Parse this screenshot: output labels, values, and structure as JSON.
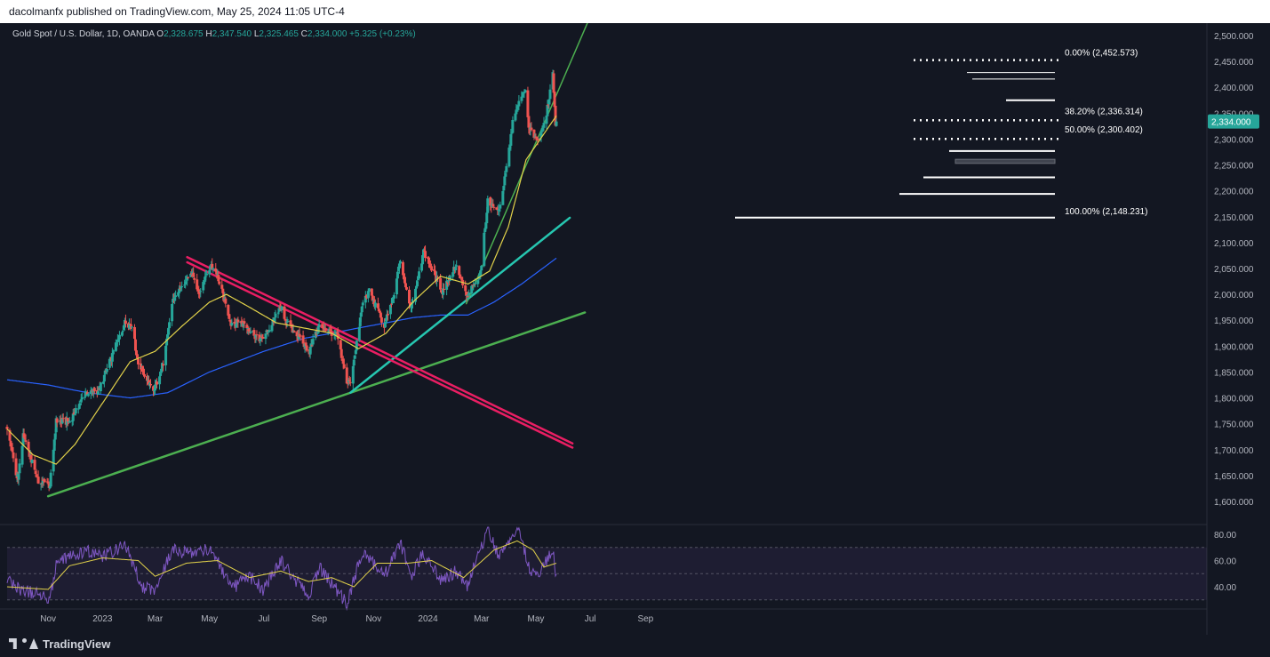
{
  "publisher": "dacolmanfx published on TradingView.com, May 25, 2024 11:05 UTC-4",
  "header": {
    "symbol": "Gold Spot / U.S. Dollar, 1D, OANDA",
    "o_label": "O",
    "o": "2,328.675",
    "h_label": "H",
    "h": "2,347.540",
    "l_label": "L",
    "l": "2,325.465",
    "c_label": "C",
    "c": "2,334.000",
    "change": "+5.325 (+0.23%)"
  },
  "brand": "TradingView",
  "colors": {
    "background": "#131722",
    "up": "#26a69a",
    "down": "#ef5350",
    "ma_fast": "#e2d24a",
    "ma_slow": "#2962ff",
    "trend_green": "#4caf50",
    "trend_teal": "#26c6b0",
    "channel_pink": "#e91e63",
    "rsi": "#7e57c2",
    "price_tag": "#26a69a"
  },
  "chart_data": {
    "type": "candlestick",
    "y_axis_ticks": [
      "2,500.000",
      "2,450.000",
      "2,400.000",
      "2,350.000",
      "2,300.000",
      "2,250.000",
      "2,200.000",
      "2,150.000",
      "2,100.000",
      "2,050.000",
      "2,000.000",
      "1,950.000",
      "1,900.000",
      "1,850.000",
      "1,800.000",
      "1,750.000",
      "1,700.000",
      "1,650.000",
      "1,600.000"
    ],
    "y_tick_values": [
      2500,
      2450,
      2400,
      2350,
      2300,
      2250,
      2200,
      2150,
      2100,
      2050,
      2000,
      1950,
      1900,
      1850,
      1800,
      1750,
      1700,
      1650,
      1600
    ],
    "ylim": [
      1570,
      2530
    ],
    "x_axis_ticks": [
      "Nov",
      "2023",
      "Mar",
      "May",
      "Jul",
      "Sep",
      "Nov",
      "2024",
      "Mar",
      "May",
      "Jul",
      "Sep"
    ],
    "x_tick_dates": [
      "2022-11-01",
      "2023-01-01",
      "2023-03-01",
      "2023-05-01",
      "2023-07-01",
      "2023-09-01",
      "2023-11-01",
      "2024-01-01",
      "2024-03-01",
      "2024-05-01",
      "2024-07-01",
      "2024-09-01"
    ],
    "current_price": 2334.0,
    "current_price_label": "2,334.000",
    "price_anchors": [
      [
        "2022-09-16",
        1744
      ],
      [
        "2022-09-28",
        1640
      ],
      [
        "2022-10-04",
        1725
      ],
      [
        "2022-10-21",
        1640
      ],
      [
        "2022-11-03",
        1631
      ],
      [
        "2022-11-10",
        1755
      ],
      [
        "2022-11-25",
        1754
      ],
      [
        "2022-12-13",
        1810
      ],
      [
        "2022-12-28",
        1815
      ],
      [
        "2023-01-26",
        1945
      ],
      [
        "2023-02-03",
        1940
      ],
      [
        "2023-02-10",
        1865
      ],
      [
        "2023-02-28",
        1815
      ],
      [
        "2023-03-10",
        1868
      ],
      [
        "2023-03-20",
        1985
      ],
      [
        "2023-04-05",
        2025
      ],
      [
        "2023-04-13",
        2040
      ],
      [
        "2023-04-19",
        2000
      ],
      [
        "2023-05-03",
        2055
      ],
      [
        "2023-05-10",
        2035
      ],
      [
        "2023-05-25",
        1945
      ],
      [
        "2023-06-07",
        1945
      ],
      [
        "2023-06-23",
        1920
      ],
      [
        "2023-06-29",
        1910
      ],
      [
        "2023-07-20",
        1975
      ],
      [
        "2023-07-27",
        1945
      ],
      [
        "2023-08-21",
        1890
      ],
      [
        "2023-09-01",
        1940
      ],
      [
        "2023-09-21",
        1920
      ],
      [
        "2023-10-02",
        1830
      ],
      [
        "2023-10-06",
        1831
      ],
      [
        "2023-10-20",
        1985
      ],
      [
        "2023-10-27",
        2005
      ],
      [
        "2023-11-13",
        1940
      ],
      [
        "2023-11-24",
        2000
      ],
      [
        "2023-12-01",
        2070
      ],
      [
        "2023-12-08",
        2004
      ],
      [
        "2023-12-13",
        1975
      ],
      [
        "2023-12-27",
        2080
      ],
      [
        "2024-01-05",
        2050
      ],
      [
        "2024-01-17",
        2006
      ],
      [
        "2024-02-01",
        2055
      ],
      [
        "2024-02-14",
        1993
      ],
      [
        "2024-02-29",
        2044
      ],
      [
        "2024-03-08",
        2180
      ],
      [
        "2024-03-20",
        2160
      ],
      [
        "2024-03-28",
        2230
      ],
      [
        "2024-04-05",
        2330
      ],
      [
        "2024-04-12",
        2370
      ],
      [
        "2024-04-19",
        2395
      ],
      [
        "2024-04-23",
        2320
      ],
      [
        "2024-05-02",
        2300
      ],
      [
        "2024-05-08",
        2310
      ],
      [
        "2024-05-14",
        2360
      ],
      [
        "2024-05-20",
        2425
      ],
      [
        "2024-05-23",
        2330
      ],
      [
        "2024-05-24",
        2334
      ]
    ],
    "horizontal_levels": [
      2428.5,
      2416,
      2375,
      2277,
      2226,
      2194
    ],
    "zone": [
      2253,
      2261
    ],
    "fibonacci": [
      {
        "label": "0.00% (2,452.573)",
        "value": 2452.573
      },
      {
        "label": "38.20% (2,336.314)",
        "value": 2336.314
      },
      {
        "label": "50.00% (2,300.402)",
        "value": 2300.402
      },
      {
        "label": "100.00% (2,148.231)",
        "value": 2148.231
      }
    ],
    "trendlines": [
      {
        "name": "long-green",
        "p1": [
          "2022-11-01",
          1610
        ],
        "p2": [
          "2024-06-25",
          1965
        ]
      },
      {
        "name": "teal",
        "p1": [
          "2023-10-06",
          1810
        ],
        "p2": [
          "2024-06-08",
          2148
        ]
      },
      {
        "name": "steep-green",
        "p1": [
          "2024-02-13",
          1982
        ],
        "p2": [
          "2024-06-28",
          2525
        ]
      },
      {
        "name": "pink-upper",
        "p1": [
          "2023-04-06",
          2072
        ],
        "p2": [
          "2024-06-11",
          1712
        ]
      },
      {
        "name": "pink-lower",
        "p1": [
          "2023-04-06",
          2062
        ],
        "p2": [
          "2024-06-11",
          1704
        ]
      }
    ],
    "ma_fast_anchors": [
      [
        "2022-09-16",
        1740
      ],
      [
        "2022-10-15",
        1690
      ],
      [
        "2022-11-10",
        1672
      ],
      [
        "2022-12-01",
        1710
      ],
      [
        "2023-01-01",
        1790
      ],
      [
        "2023-02-01",
        1870
      ],
      [
        "2023-03-01",
        1890
      ],
      [
        "2023-04-01",
        1940
      ],
      [
        "2023-05-01",
        1985
      ],
      [
        "2023-05-20",
        2000
      ],
      [
        "2023-06-15",
        1975
      ],
      [
        "2023-07-15",
        1945
      ],
      [
        "2023-08-15",
        1935
      ],
      [
        "2023-09-15",
        1925
      ],
      [
        "2023-10-15",
        1895
      ],
      [
        "2023-11-15",
        1925
      ],
      [
        "2023-12-15",
        1985
      ],
      [
        "2024-01-15",
        2035
      ],
      [
        "2024-02-15",
        2020
      ],
      [
        "2024-03-10",
        2045
      ],
      [
        "2024-03-31",
        2130
      ],
      [
        "2024-04-20",
        2260
      ],
      [
        "2024-05-24",
        2345
      ]
    ],
    "ma_slow_anchors": [
      [
        "2022-09-16",
        1835
      ],
      [
        "2022-11-01",
        1825
      ],
      [
        "2022-12-15",
        1810
      ],
      [
        "2023-02-01",
        1800
      ],
      [
        "2023-03-15",
        1810
      ],
      [
        "2023-05-01",
        1850
      ],
      [
        "2023-07-01",
        1890
      ],
      [
        "2023-08-15",
        1915
      ],
      [
        "2023-09-15",
        1925
      ],
      [
        "2023-10-15",
        1935
      ],
      [
        "2023-11-15",
        1945
      ],
      [
        "2023-12-15",
        1955
      ],
      [
        "2024-01-15",
        1960
      ],
      [
        "2024-02-15",
        1960
      ],
      [
        "2024-03-15",
        1985
      ],
      [
        "2024-04-15",
        2020
      ],
      [
        "2024-05-24",
        2070
      ]
    ],
    "rsi_panel": {
      "ticks": [
        "80.00",
        "60.00",
        "40.00"
      ],
      "tick_values": [
        80,
        60,
        40
      ],
      "ylim": [
        25,
        87
      ],
      "overbought": 70,
      "oversold": 30,
      "rsi_anchors": [
        [
          "2022-09-16",
          45
        ],
        [
          "2022-10-01",
          38
        ],
        [
          "2022-10-15",
          35
        ],
        [
          "2022-11-03",
          32
        ],
        [
          "2022-11-12",
          62
        ],
        [
          "2022-11-30",
          63
        ],
        [
          "2022-12-15",
          67
        ],
        [
          "2023-01-02",
          63
        ],
        [
          "2023-01-26",
          72
        ],
        [
          "2023-02-15",
          40
        ],
        [
          "2023-03-01",
          38
        ],
        [
          "2023-03-20",
          68
        ],
        [
          "2023-04-05",
          66
        ],
        [
          "2023-05-03",
          69
        ],
        [
          "2023-05-25",
          38
        ],
        [
          "2023-06-15",
          48
        ],
        [
          "2023-06-30",
          38
        ],
        [
          "2023-07-20",
          60
        ],
        [
          "2023-08-20",
          32
        ],
        [
          "2023-09-01",
          55
        ],
        [
          "2023-10-02",
          27
        ],
        [
          "2023-10-20",
          68
        ],
        [
          "2023-11-13",
          48
        ],
        [
          "2023-12-01",
          74
        ],
        [
          "2023-12-13",
          47
        ],
        [
          "2023-12-27",
          66
        ],
        [
          "2024-01-17",
          44
        ],
        [
          "2024-02-01",
          52
        ],
        [
          "2024-02-14",
          41
        ],
        [
          "2024-03-08",
          84
        ],
        [
          "2024-03-20",
          64
        ],
        [
          "2024-04-12",
          84
        ],
        [
          "2024-04-23",
          55
        ],
        [
          "2024-05-02",
          48
        ],
        [
          "2024-05-20",
          67
        ],
        [
          "2024-05-24",
          48
        ]
      ],
      "signal_anchors": [
        [
          "2022-09-16",
          40
        ],
        [
          "2022-11-01",
          38
        ],
        [
          "2022-11-25",
          56
        ],
        [
          "2023-01-01",
          62
        ],
        [
          "2023-02-10",
          60
        ],
        [
          "2023-03-01",
          48
        ],
        [
          "2023-04-05",
          58
        ],
        [
          "2023-05-10",
          60
        ],
        [
          "2023-06-15",
          47
        ],
        [
          "2023-07-20",
          52
        ],
        [
          "2023-08-20",
          44
        ],
        [
          "2023-09-15",
          47
        ],
        [
          "2023-10-10",
          40
        ],
        [
          "2023-11-05",
          58
        ],
        [
          "2023-12-10",
          58
        ],
        [
          "2024-01-05",
          60
        ],
        [
          "2024-02-10",
          47
        ],
        [
          "2024-03-15",
          68
        ],
        [
          "2024-04-10",
          75
        ],
        [
          "2024-04-28",
          68
        ],
        [
          "2024-05-10",
          55
        ],
        [
          "2024-05-24",
          58
        ]
      ]
    }
  }
}
